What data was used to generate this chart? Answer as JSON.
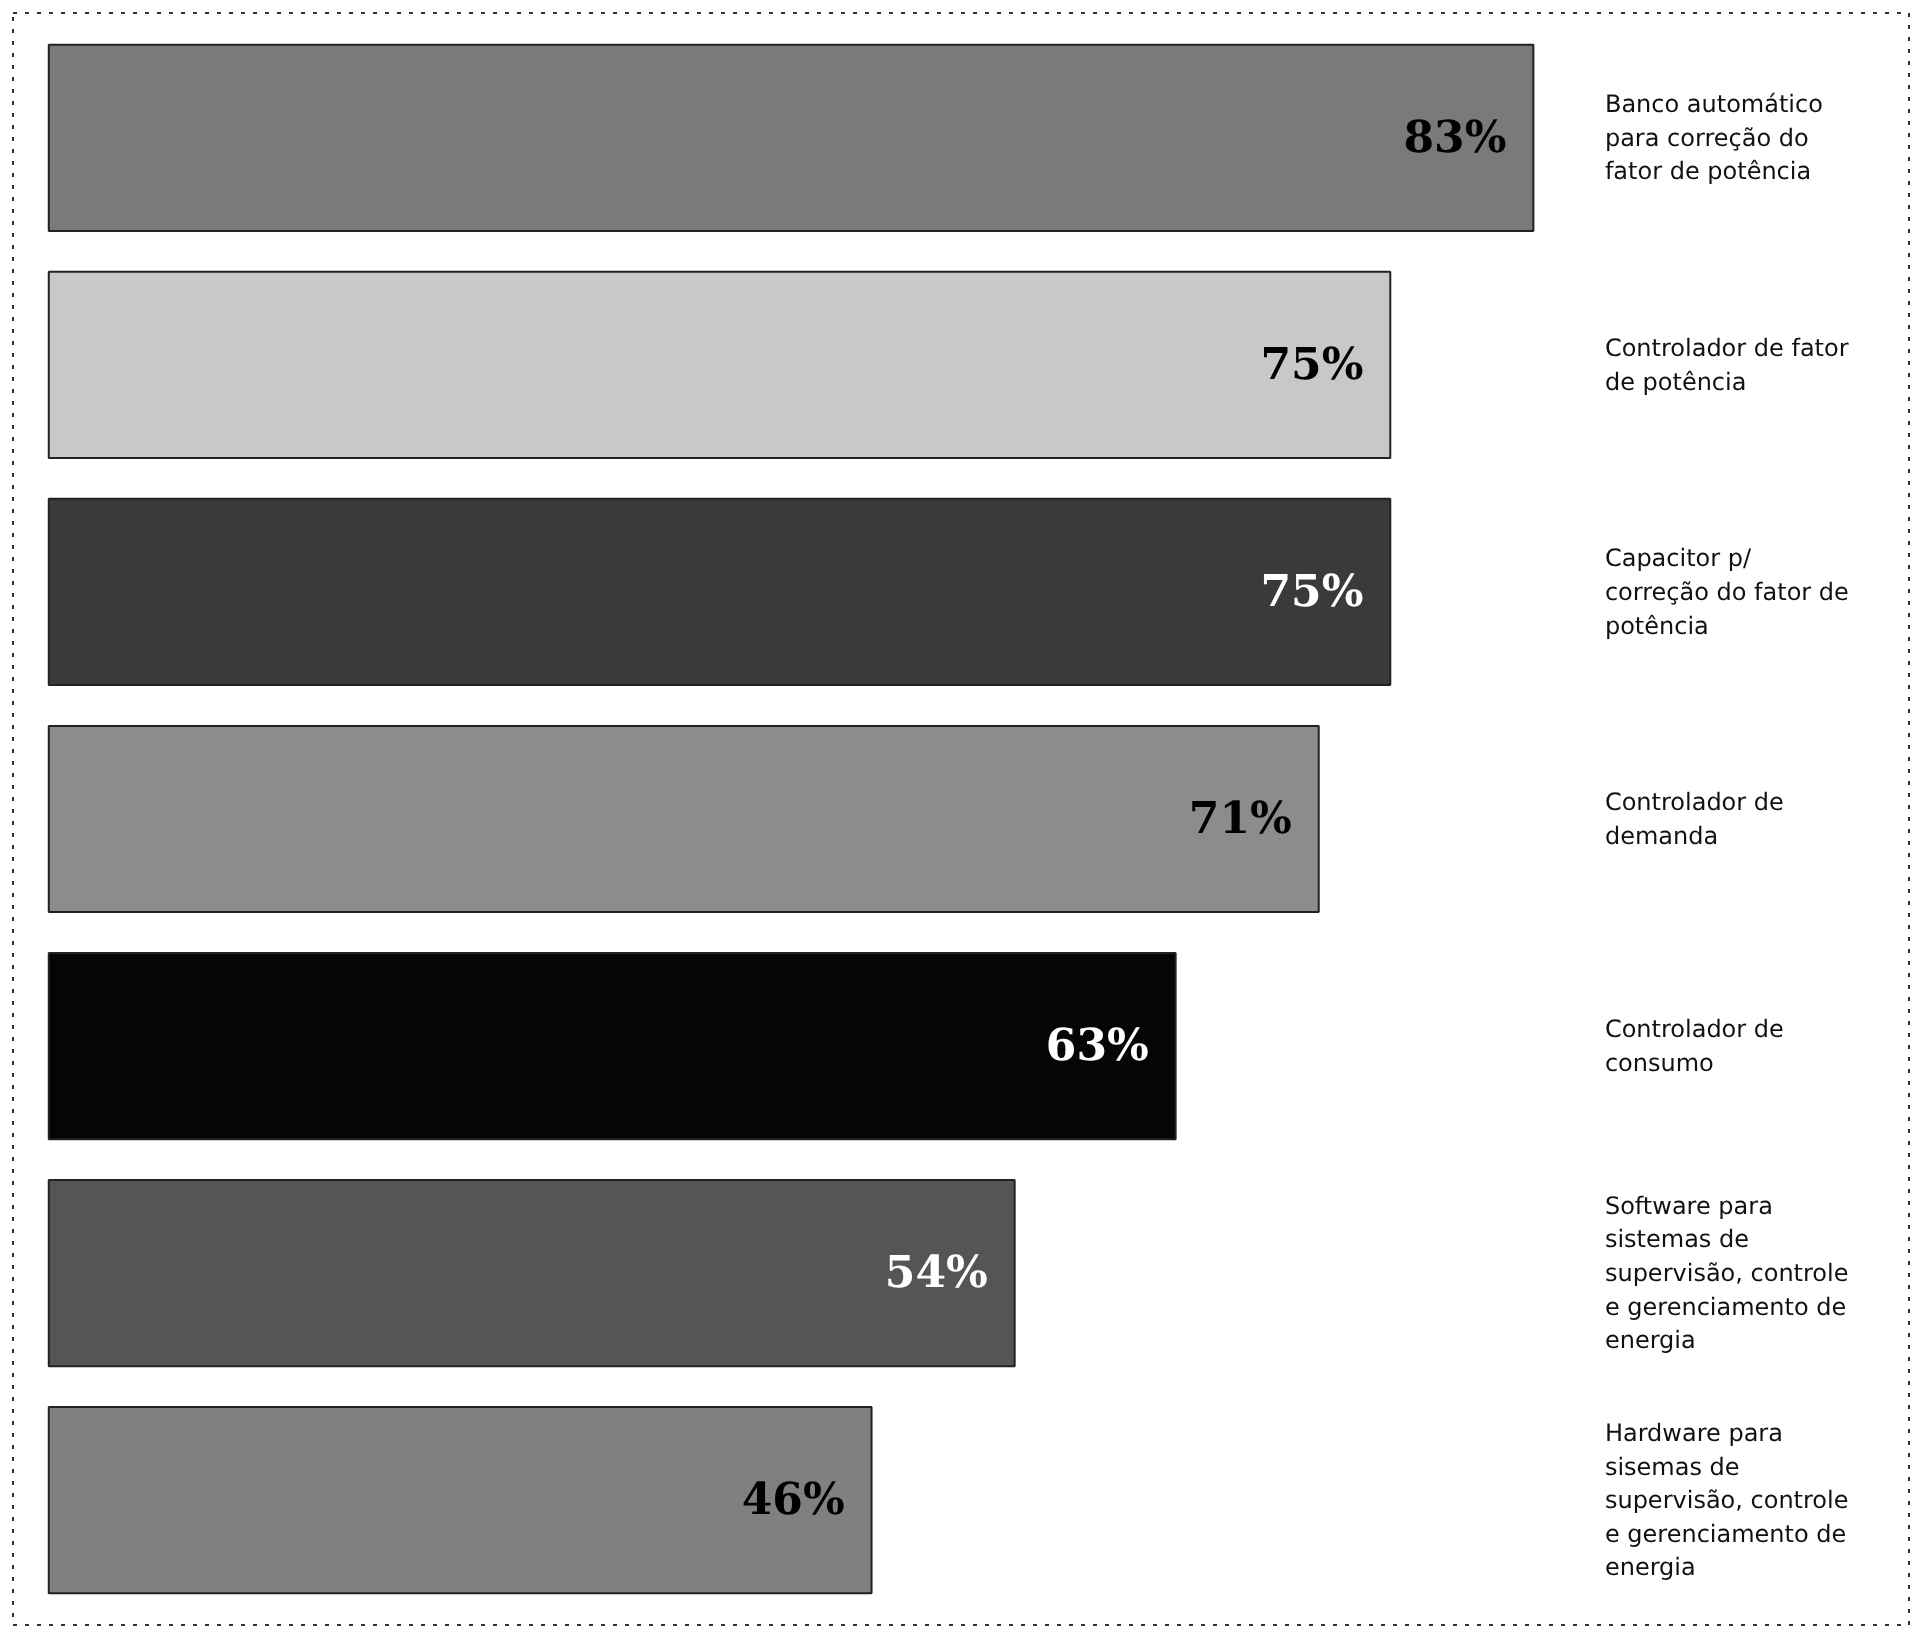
{
  "chart_data": {
    "type": "bar",
    "orientation": "horizontal",
    "categories": [
      "Banco automático para correção do fator de potência",
      "Controlador de fator de potência",
      "Capacitor p/ correção do fator de potência",
      "Controlador de demanda",
      "Controlador de consumo",
      "Software para sistemas de supervisão, controle e gerenciamento de energia",
      "Hardware para sisemas de supervisão, controle e gerenciamento de energia"
    ],
    "values": [
      83,
      75,
      75,
      71,
      63,
      54,
      46
    ],
    "value_labels": [
      "83%",
      "75%",
      "75%",
      "71%",
      "63%",
      "54%",
      "46%"
    ],
    "colors": [
      "#7a7a7a",
      "#c8c8c8",
      "#3a3a3a",
      "#8c8c8c",
      "#050505",
      "#555555",
      "#808080"
    ],
    "grid": false
  }
}
